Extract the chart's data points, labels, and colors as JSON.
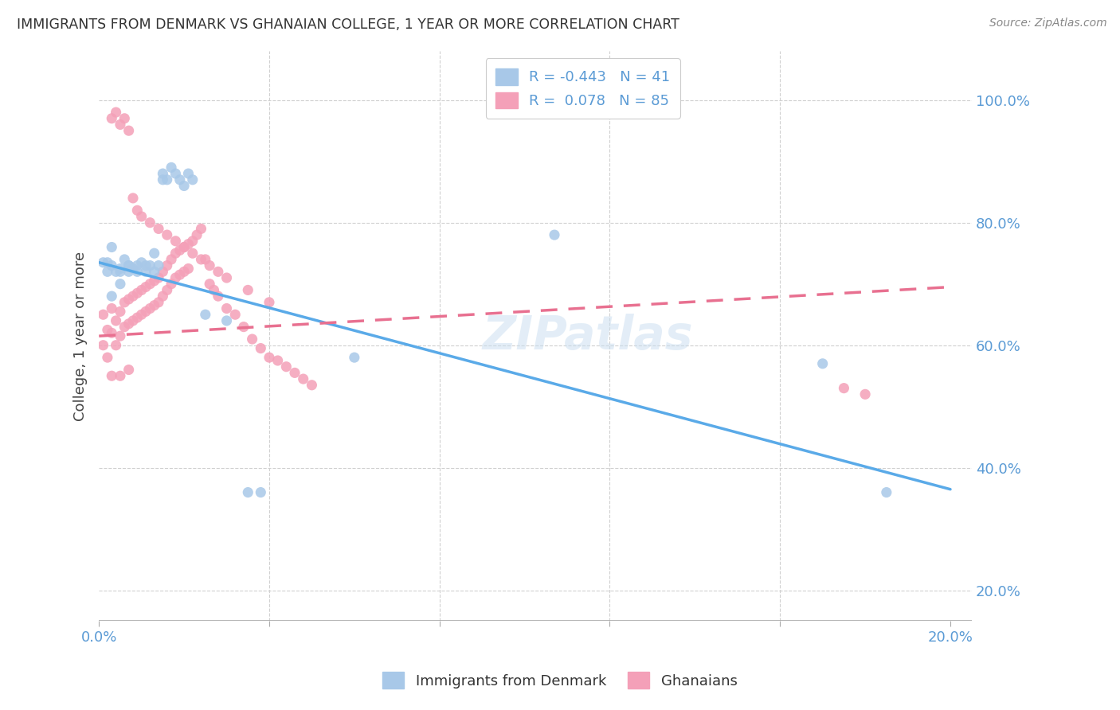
{
  "title": "IMMIGRANTS FROM DENMARK VS GHANAIAN COLLEGE, 1 YEAR OR MORE CORRELATION CHART",
  "source": "Source: ZipAtlas.com",
  "ylabel": "College, 1 year or more",
  "xlim": [
    0.0,
    0.205
  ],
  "ylim": [
    0.15,
    1.08
  ],
  "legend_R_blue": "-0.443",
  "legend_N_blue": "41",
  "legend_R_pink": "0.078",
  "legend_N_pink": "85",
  "blue_color": "#a8c8e8",
  "pink_color": "#f4a0b8",
  "blue_line_color": "#5aaae8",
  "pink_line_color": "#e87090",
  "blue_scatter_x": [
    0.001,
    0.002,
    0.003,
    0.004,
    0.005,
    0.006,
    0.007,
    0.008,
    0.009,
    0.01,
    0.011,
    0.012,
    0.013,
    0.014,
    0.015,
    0.016,
    0.017,
    0.018,
    0.019,
    0.02,
    0.021,
    0.022,
    0.002,
    0.003,
    0.005,
    0.007,
    0.009,
    0.011,
    0.013,
    0.015,
    0.025,
    0.03,
    0.035,
    0.038,
    0.06,
    0.107,
    0.17,
    0.185,
    0.003,
    0.005,
    0.007
  ],
  "blue_scatter_y": [
    0.735,
    0.735,
    0.76,
    0.72,
    0.725,
    0.74,
    0.73,
    0.725,
    0.73,
    0.735,
    0.72,
    0.73,
    0.75,
    0.73,
    0.87,
    0.87,
    0.89,
    0.88,
    0.87,
    0.86,
    0.88,
    0.87,
    0.72,
    0.73,
    0.72,
    0.73,
    0.72,
    0.73,
    0.72,
    0.88,
    0.65,
    0.64,
    0.36,
    0.36,
    0.58,
    0.78,
    0.57,
    0.36,
    0.68,
    0.7,
    0.72
  ],
  "pink_scatter_x": [
    0.001,
    0.001,
    0.002,
    0.002,
    0.003,
    0.003,
    0.004,
    0.004,
    0.005,
    0.005,
    0.006,
    0.006,
    0.007,
    0.007,
    0.008,
    0.008,
    0.009,
    0.009,
    0.01,
    0.01,
    0.011,
    0.011,
    0.012,
    0.012,
    0.013,
    0.013,
    0.014,
    0.014,
    0.015,
    0.015,
    0.016,
    0.016,
    0.017,
    0.017,
    0.018,
    0.018,
    0.019,
    0.019,
    0.02,
    0.02,
    0.021,
    0.021,
    0.022,
    0.023,
    0.024,
    0.025,
    0.026,
    0.027,
    0.028,
    0.03,
    0.032,
    0.034,
    0.036,
    0.038,
    0.04,
    0.042,
    0.044,
    0.046,
    0.048,
    0.05,
    0.003,
    0.004,
    0.005,
    0.006,
    0.007,
    0.008,
    0.009,
    0.01,
    0.012,
    0.014,
    0.016,
    0.018,
    0.02,
    0.022,
    0.024,
    0.026,
    0.028,
    0.03,
    0.035,
    0.04,
    0.003,
    0.005,
    0.007,
    0.175,
    0.18
  ],
  "pink_scatter_y": [
    0.65,
    0.6,
    0.625,
    0.58,
    0.66,
    0.62,
    0.64,
    0.6,
    0.655,
    0.615,
    0.67,
    0.63,
    0.675,
    0.635,
    0.68,
    0.64,
    0.685,
    0.645,
    0.69,
    0.65,
    0.695,
    0.655,
    0.7,
    0.66,
    0.705,
    0.665,
    0.71,
    0.67,
    0.72,
    0.68,
    0.73,
    0.69,
    0.74,
    0.7,
    0.75,
    0.71,
    0.755,
    0.715,
    0.76,
    0.72,
    0.765,
    0.725,
    0.77,
    0.78,
    0.79,
    0.74,
    0.7,
    0.69,
    0.68,
    0.66,
    0.65,
    0.63,
    0.61,
    0.595,
    0.58,
    0.575,
    0.565,
    0.555,
    0.545,
    0.535,
    0.97,
    0.98,
    0.96,
    0.97,
    0.95,
    0.84,
    0.82,
    0.81,
    0.8,
    0.79,
    0.78,
    0.77,
    0.76,
    0.75,
    0.74,
    0.73,
    0.72,
    0.71,
    0.69,
    0.67,
    0.55,
    0.55,
    0.56,
    0.53,
    0.52
  ],
  "blue_line_x0": 0.0,
  "blue_line_y0": 0.735,
  "blue_line_x1": 0.2,
  "blue_line_y1": 0.365,
  "pink_line_x0": 0.0,
  "pink_line_y0": 0.615,
  "pink_line_x1": 0.2,
  "pink_line_y1": 0.695
}
